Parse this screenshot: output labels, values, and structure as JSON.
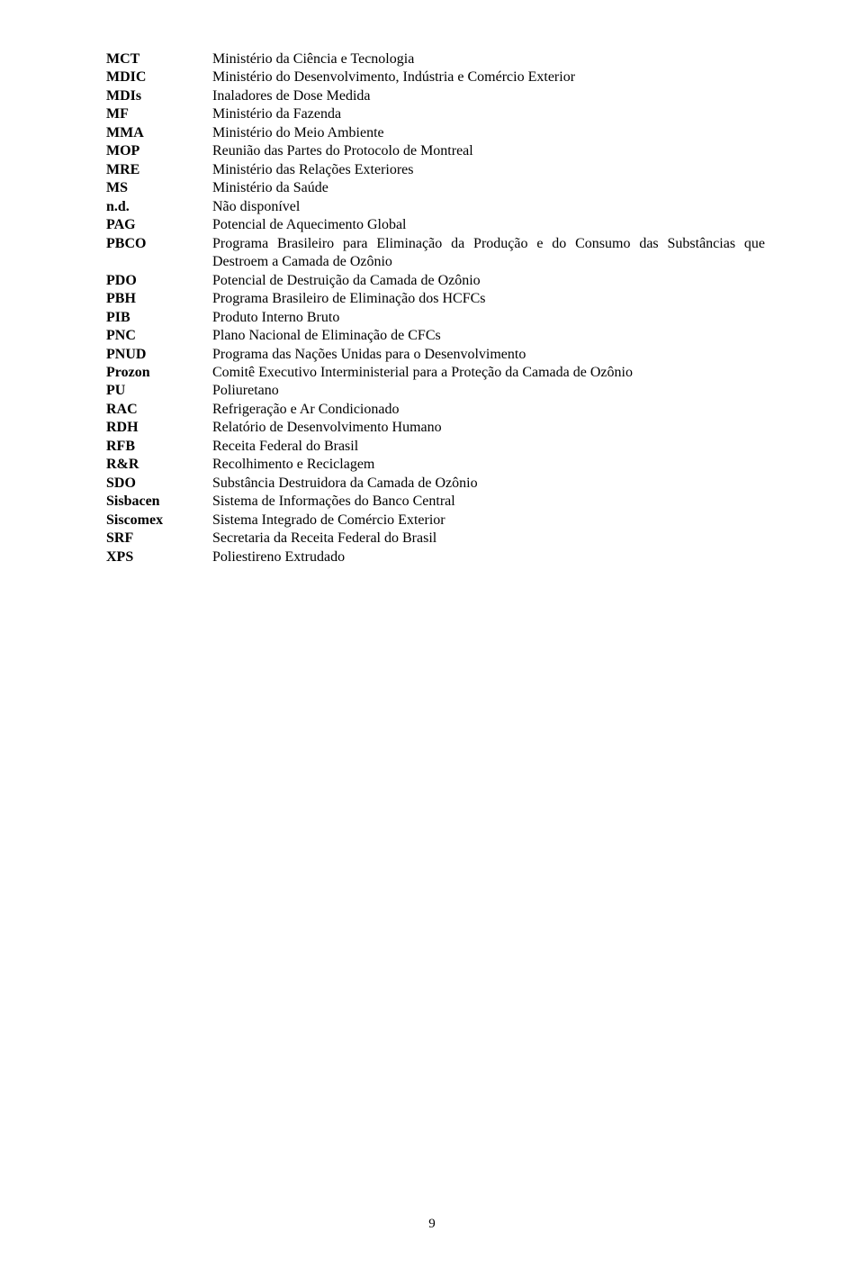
{
  "entries": [
    {
      "abbr": "MCT",
      "def": "Ministério da Ciência e Tecnologia"
    },
    {
      "abbr": "MDIC",
      "def": "Ministério do Desenvolvimento, Indústria e Comércio Exterior"
    },
    {
      "abbr": "MDIs",
      "def": "Inaladores de Dose Medida"
    },
    {
      "abbr": "MF",
      "def": "Ministério da Fazenda"
    },
    {
      "abbr": "MMA",
      "def": "Ministério do Meio Ambiente"
    },
    {
      "abbr": "MOP",
      "def": "Reunião das Partes do Protocolo de Montreal"
    },
    {
      "abbr": "MRE",
      "def": "Ministério das Relações Exteriores"
    },
    {
      "abbr": "MS",
      "def": "Ministério da Saúde"
    },
    {
      "abbr": "n.d.",
      "def": "Não disponível"
    },
    {
      "abbr": "PAG",
      "def": " Potencial de Aquecimento Global"
    },
    {
      "abbr": "PBCO",
      "def": "Programa Brasileiro para Eliminação da Produção e do Consumo das Substâncias que Destroem a Camada de Ozônio",
      "justify": true
    },
    {
      "abbr": "PDO",
      "def": "Potencial de Destruição da Camada de Ozônio"
    },
    {
      "abbr": "PBH",
      "def": "Programa Brasileiro de Eliminação dos HCFCs"
    },
    {
      "abbr": "PIB",
      "def": "Produto Interno Bruto"
    },
    {
      "abbr": "PNC",
      "def": "Plano Nacional de Eliminação de CFCs"
    },
    {
      "abbr": "PNUD",
      "def": " Programa das Nações Unidas para o Desenvolvimento"
    },
    {
      "abbr": "Prozon",
      "def": "Comitê Executivo Interministerial para a Proteção da Camada de Ozônio"
    },
    {
      "abbr": "PU",
      "def": "Poliuretano"
    },
    {
      "abbr": "RAC",
      "def": "Refrigeração e Ar Condicionado"
    },
    {
      "abbr": "RDH",
      "def": "Relatório de Desenvolvimento Humano"
    },
    {
      "abbr": "RFB",
      "def": "Receita Federal do Brasil"
    },
    {
      "abbr": "R&R",
      "def": "Recolhimento e Reciclagem"
    },
    {
      "abbr": "SDO",
      "def": " Substância Destruidora da Camada de Ozônio"
    },
    {
      "abbr": "Sisbacen",
      "def": " Sistema de Informações do Banco Central"
    },
    {
      "abbr": "Siscomex",
      "def": "Sistema Integrado de Comércio Exterior"
    },
    {
      "abbr": "SRF",
      "def": "Secretaria da Receita Federal do Brasil"
    },
    {
      "abbr": "XPS",
      "def": "Poliestireno Extrudado"
    }
  ],
  "page_number": "9"
}
